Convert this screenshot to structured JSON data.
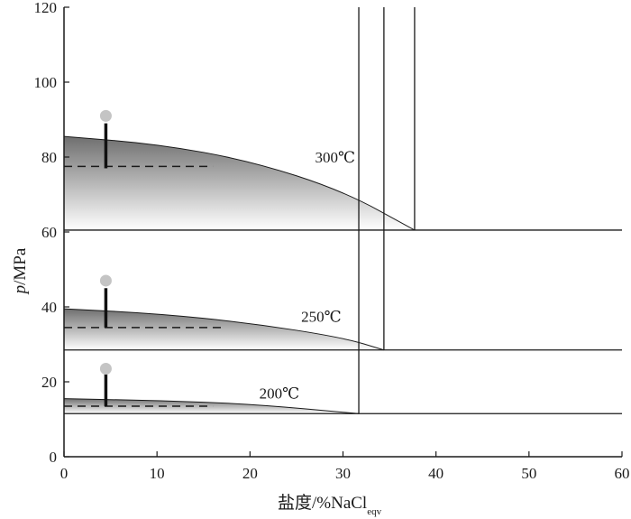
{
  "chart_data": {
    "type": "line",
    "title": "",
    "xlabel": "盐度/%NaCl",
    "xlabel_subscript": "eqv",
    "ylabel_italic": "p",
    "ylabel_rest": "/MPa",
    "xlim": [
      0,
      60
    ],
    "ylim": [
      0,
      120
    ],
    "xticks": [
      0,
      10,
      20,
      30,
      40,
      50,
      60
    ],
    "yticks": [
      0,
      20,
      40,
      60,
      80,
      100,
      120
    ],
    "grid": false,
    "colors": {
      "axis": "#1a1a1a",
      "fill_dark": "#6f6f6f",
      "fill_light": "#ffffff",
      "marker": "#c4c4c4",
      "bar": "#111111"
    },
    "panels": [
      {
        "label": "300℃",
        "base_pressure": 60.5,
        "curve": [
          [
            0,
            85.5
          ],
          [
            10,
            83.5
          ],
          [
            20,
            79
          ],
          [
            30,
            71
          ],
          [
            37.7,
            60.5
          ]
        ],
        "vertical_line_x": 37.7,
        "dashed_y": 77.5,
        "dashed_x": [
          0,
          16
        ],
        "bar": {
          "x": 4.5,
          "y_bottom": 77,
          "y_top": 89
        },
        "marker": {
          "x": 4.5,
          "y": 91
        },
        "label_pos": [
          27,
          78.5
        ]
      },
      {
        "label": "250℃",
        "base_pressure": 28.5,
        "curve": [
          [
            0,
            39.5
          ],
          [
            10,
            38.2
          ],
          [
            20,
            35.7
          ],
          [
            30,
            31.8
          ],
          [
            34.4,
            28.5
          ]
        ],
        "vertical_line_x": 34.4,
        "dashed_y": 34.5,
        "dashed_x": [
          0,
          17
        ],
        "bar": {
          "x": 4.5,
          "y_bottom": 34.5,
          "y_top": 45
        },
        "marker": {
          "x": 4.5,
          "y": 47
        },
        "label_pos": [
          25.5,
          36
        ]
      },
      {
        "label": "200℃",
        "base_pressure": 11.5,
        "curve": [
          [
            0,
            15.5
          ],
          [
            10,
            15
          ],
          [
            20,
            14.1
          ],
          [
            31.7,
            11.5
          ]
        ],
        "vertical_line_x": 31.7,
        "dashed_y": 13.5,
        "dashed_x": [
          0,
          16
        ],
        "bar": {
          "x": 4.5,
          "y_bottom": 13.5,
          "y_top": 22
        },
        "marker": {
          "x": 4.5,
          "y": 23.5
        },
        "label_pos": [
          21,
          15.5
        ]
      }
    ]
  }
}
